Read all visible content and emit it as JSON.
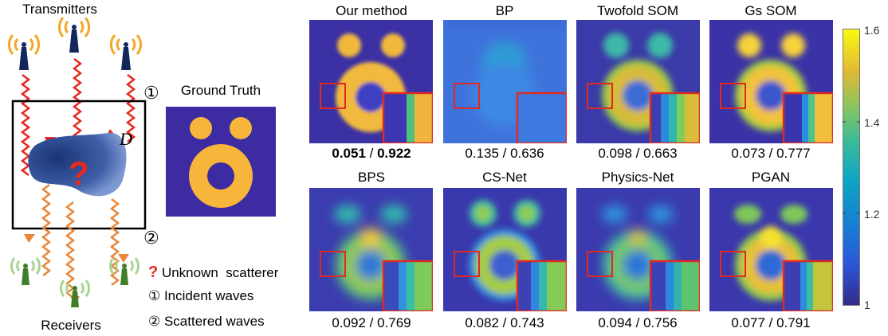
{
  "left_diagram": {
    "transmitters_label": "Transmitters",
    "receivers_label": "Receivers",
    "domain_label": "D",
    "unknown_mark": "?",
    "circled_one": "①",
    "circled_two": "②",
    "legend": {
      "unknown": "Unknown  scatterer",
      "incident": "① Incident waves",
      "scattered": "② Scattered waves"
    },
    "colors": {
      "transmitter": "#f5a623",
      "receiver": "#9bcf7f",
      "incident_wave": "#e8281e",
      "scattered_wave": "#e8873a",
      "scatterer": "#1e3a7a"
    }
  },
  "ground_truth": {
    "title": "Ground Truth"
  },
  "panels": [
    {
      "title": "Our method",
      "metric_a": "0.051",
      "metric_sep": " / ",
      "metric_b": "0.922",
      "bold": true
    },
    {
      "title": "BP",
      "metric_a": "0.135",
      "metric_sep": " / ",
      "metric_b": "0.636",
      "bold": false
    },
    {
      "title": "Twofold SOM",
      "metric_a": "0.098",
      "metric_sep": " / ",
      "metric_b": "0.663",
      "bold": false
    },
    {
      "title": "Gs SOM",
      "metric_a": "0.073",
      "metric_sep": " / ",
      "metric_b": "0.777",
      "bold": false
    },
    {
      "title": "BPS",
      "metric_a": "0.092",
      "metric_sep": " / ",
      "metric_b": "0.769",
      "bold": false
    },
    {
      "title": "CS-Net",
      "metric_a": "0.082",
      "metric_sep": " / ",
      "metric_b": "0.743",
      "bold": false
    },
    {
      "title": "Physics-Net",
      "metric_a": "0.094",
      "metric_sep": " / ",
      "metric_b": "0.756",
      "bold": false
    },
    {
      "title": "PGAN",
      "metric_a": "0.077",
      "metric_sep": " / ",
      "metric_b": "0.791",
      "bold": false
    }
  ],
  "colorbar": {
    "ticks": [
      "1.6",
      "1.4",
      "1.2",
      "1"
    ],
    "colors": {
      "low": "#3b2aa0",
      "mid": "#1fa5a8",
      "high": "#f7e91d"
    }
  }
}
